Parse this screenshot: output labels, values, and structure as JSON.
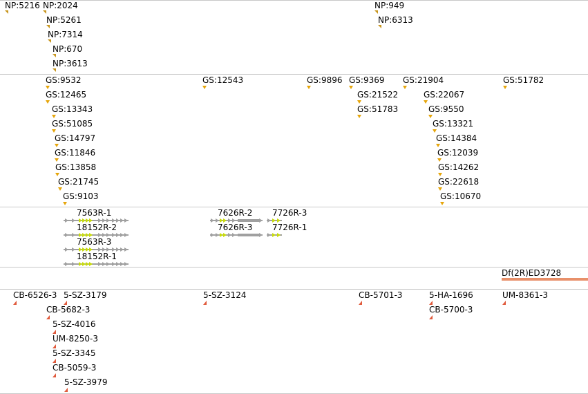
{
  "colors": {
    "np_marker": "#c8961e",
    "gs_marker": "#e6a50a",
    "cb_marker": "#e05a3c",
    "gene_arrow": "#a0a0a0",
    "gene_exon": "#c8dc0a",
    "deficiency_bar": "#e8906a",
    "divider": "#c8c8c8"
  },
  "np_track": {
    "items": [
      "NP:5216",
      "NP:2024",
      "NP:5261",
      "NP:7314",
      "NP:670",
      "NP:3613",
      "NP:949",
      "NP:6313"
    ]
  },
  "gs_track": {
    "items": [
      "GS:9532",
      "GS:12465",
      "GS:13343",
      "GS:51085",
      "GS:14797",
      "GS:11846",
      "GS:13858",
      "GS:21745",
      "GS:9103",
      "GS:12543",
      "GS:9896",
      "GS:9369",
      "GS:21522",
      "GS:51783",
      "GS:21904",
      "GS:22067",
      "GS:9550",
      "GS:13321",
      "GS:14384",
      "GS:12039",
      "GS:14262",
      "GS:22618",
      "GS:10670",
      "GS:51782"
    ]
  },
  "gene_track": {
    "items": [
      "7563R-1",
      "18152R-2",
      "7563R-3",
      "18152R-1",
      "7626R-2",
      "7626R-3",
      "7726R-3",
      "7726R-1"
    ]
  },
  "deficiency_track": {
    "items": [
      "Df(2R)ED3728"
    ]
  },
  "stock_track": {
    "items": [
      "CB-6526-3",
      "5-SZ-3179",
      "CB-5682-3",
      "5-SZ-4016",
      "UM-8250-3",
      "5-SZ-3345",
      "CB-5059-3",
      "5-SZ-3979",
      "5-SZ-3124",
      "CB-5701-3",
      "5-HA-1696",
      "CB-5700-3",
      "UM-8361-3"
    ]
  }
}
